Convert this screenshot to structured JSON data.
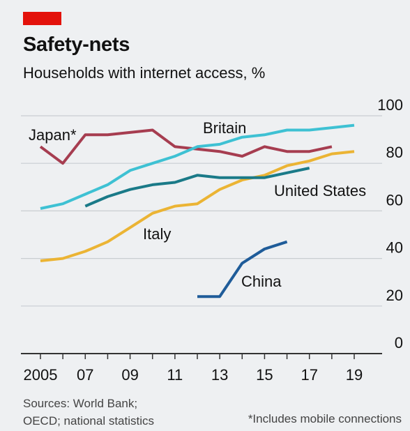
{
  "header": {
    "title": "Safety-nets",
    "subtitle": "Households with internet access, %"
  },
  "footer": {
    "sources_line1": "Sources: World Bank;",
    "sources_line2": "OECD; national statistics",
    "footnote": "*Includes mobile connections"
  },
  "chart_data": {
    "type": "line",
    "title": "Safety-nets",
    "subtitle": "Households with internet access, %",
    "xlabel": "",
    "ylabel": "",
    "xlim": [
      2005,
      2019
    ],
    "ylim": [
      0,
      100
    ],
    "x_ticks": [
      "2005",
      "07",
      "09",
      "11",
      "13",
      "15",
      "17",
      "19"
    ],
    "x_tick_values": [
      2005,
      2007,
      2009,
      2011,
      2013,
      2015,
      2017,
      2019
    ],
    "y_ticks": [
      "0",
      "20",
      "40",
      "60",
      "80",
      "100"
    ],
    "y_tick_values": [
      0,
      20,
      40,
      60,
      80,
      100
    ],
    "grid": "horizontal",
    "series": [
      {
        "name": "Britain",
        "color": "#3ec1d3",
        "points": [
          [
            2005,
            61
          ],
          [
            2006,
            63
          ],
          [
            2007,
            67
          ],
          [
            2008,
            71
          ],
          [
            2009,
            77
          ],
          [
            2010,
            80
          ],
          [
            2011,
            83
          ],
          [
            2012,
            87
          ],
          [
            2013,
            88
          ],
          [
            2014,
            91
          ],
          [
            2015,
            92
          ],
          [
            2016,
            94
          ],
          [
            2017,
            94
          ],
          [
            2018,
            95
          ],
          [
            2019,
            96
          ]
        ]
      },
      {
        "name": "Japan*",
        "color": "#a63d50",
        "points": [
          [
            2005,
            87
          ],
          [
            2006,
            80
          ],
          [
            2007,
            92
          ],
          [
            2008,
            92
          ],
          [
            2009,
            93
          ],
          [
            2010,
            94
          ],
          [
            2011,
            87
          ],
          [
            2012,
            86
          ],
          [
            2013,
            85
          ],
          [
            2014,
            83
          ],
          [
            2015,
            87
          ],
          [
            2016,
            85
          ],
          [
            2017,
            85
          ],
          [
            2018,
            87
          ]
        ]
      },
      {
        "name": "United States",
        "color": "#1a7a88",
        "points": [
          [
            2007,
            62
          ],
          [
            2008,
            66
          ],
          [
            2009,
            69
          ],
          [
            2010,
            71
          ],
          [
            2011,
            72
          ],
          [
            2012,
            75
          ],
          [
            2013,
            74
          ],
          [
            2014,
            74
          ],
          [
            2015,
            74
          ],
          [
            2016,
            76
          ],
          [
            2017,
            78
          ]
        ]
      },
      {
        "name": "Italy",
        "color": "#ebb434",
        "points": [
          [
            2005,
            39
          ],
          [
            2006,
            40
          ],
          [
            2007,
            43
          ],
          [
            2008,
            47
          ],
          [
            2009,
            53
          ],
          [
            2010,
            59
          ],
          [
            2011,
            62
          ],
          [
            2012,
            63
          ],
          [
            2013,
            69
          ],
          [
            2014,
            73
          ],
          [
            2015,
            75
          ],
          [
            2016,
            79
          ],
          [
            2017,
            81
          ],
          [
            2018,
            84
          ],
          [
            2019,
            85
          ]
        ]
      },
      {
        "name": "China",
        "color": "#1f5c99",
        "points": [
          [
            2012,
            24
          ],
          [
            2013,
            24
          ],
          [
            2014,
            38
          ],
          [
            2015,
            44
          ],
          [
            2016,
            47
          ]
        ]
      }
    ]
  }
}
